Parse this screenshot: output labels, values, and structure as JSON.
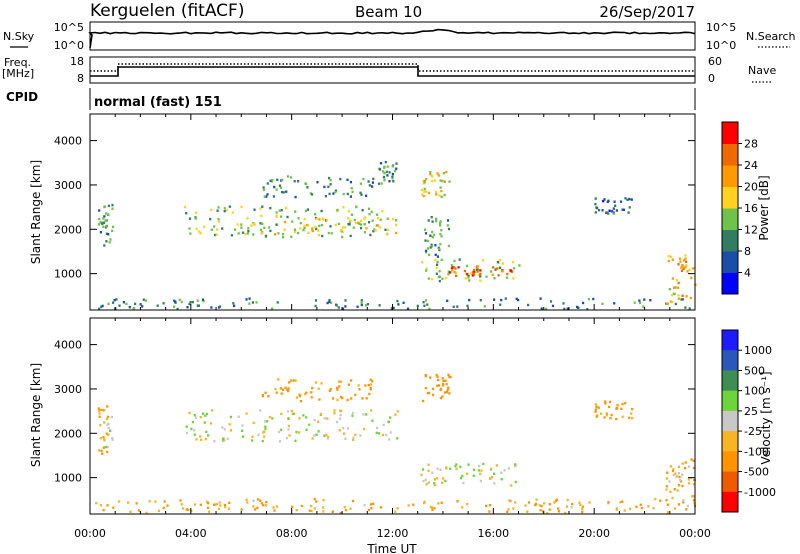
{
  "header": {
    "station": "Kerguelen (fitACF)",
    "beam": "Beam 10",
    "date": "26/Sep/2017"
  },
  "sky_panel": {
    "left_label": "N.Sky",
    "right_label": "N.Search",
    "left_ticks": [
      "10^5",
      "10^0"
    ],
    "right_ticks": [
      "10^5",
      "10^0"
    ]
  },
  "freq_panel": {
    "left_label": "Freq.",
    "left_units": "[MHz]",
    "right_label": "Nave",
    "left_ticks": [
      "18",
      "8"
    ],
    "right_ticks": [
      "60",
      "0"
    ]
  },
  "cpid_panel": {
    "label": "CPID",
    "mode": "normal (fast) 151"
  },
  "x_axis": {
    "label": "Time UT",
    "ticks": [
      "00:00",
      "04:00",
      "08:00",
      "12:00",
      "16:00",
      "20:00",
      "00:00"
    ]
  },
  "colors": {
    "power": [
      "#0000ff",
      "#1c4da8",
      "#317c62",
      "#6fc24a",
      "#ffd21f",
      "#ff9a00",
      "#f06a00",
      "#ff0000"
    ],
    "velocity": [
      "#1c1cff",
      "#2b58b8",
      "#3e8d52",
      "#6ed43b",
      "#c8c8c8",
      "#f7b526",
      "#ff9400",
      "#f05a00",
      "#ff0000"
    ]
  },
  "chart_data": [
    {
      "type": "heatmap",
      "panel": "power",
      "ylabel": "Slant Range [km]",
      "ylim": [
        180,
        4600
      ],
      "yticks": [
        "1000",
        "2000",
        "3000",
        "4000"
      ],
      "xlim_hours": [
        0,
        24
      ],
      "colorbar": {
        "label": "Power [dB]",
        "range": [
          0,
          32
        ],
        "ticks": [
          "4",
          "8",
          "12",
          "16",
          "20",
          "24",
          "28"
        ]
      },
      "echo_regions": [
        {
          "t": [
            0.3,
            0.9
          ],
          "r": [
            1500,
            2600
          ],
          "value": 10
        },
        {
          "t": [
            3.7,
            11.8
          ],
          "r": [
            1800,
            2500
          ],
          "value": 14
        },
        {
          "t": [
            6.4,
            12.2
          ],
          "r": [
            1850,
            2250
          ],
          "value": 17
        },
        {
          "t": [
            6.8,
            11.2
          ],
          "r": [
            2700,
            3200
          ],
          "value": 10
        },
        {
          "t": [
            11.4,
            12.2
          ],
          "r": [
            3000,
            3500
          ],
          "value": 11
        },
        {
          "t": [
            13.1,
            14.3
          ],
          "r": [
            2700,
            3300
          ],
          "value": 19
        },
        {
          "t": [
            13.1,
            17.0
          ],
          "r": [
            800,
            1300
          ],
          "value": 15
        },
        {
          "t": [
            14.0,
            16.8
          ],
          "r": [
            920,
            1150
          ],
          "value": 27
        },
        {
          "t": [
            13.2,
            14.2
          ],
          "r": [
            1300,
            2300
          ],
          "value": 11
        },
        {
          "t": [
            0.0,
            24.0
          ],
          "r": [
            180,
            420
          ],
          "value": 9
        },
        {
          "t": [
            22.8,
            24.0
          ],
          "r": [
            300,
            1400
          ],
          "value": 20
        },
        {
          "t": [
            20.0,
            21.5
          ],
          "r": [
            2300,
            2700
          ],
          "value": 8
        }
      ]
    },
    {
      "type": "heatmap",
      "panel": "velocity",
      "ylabel": "Slant Range [km]",
      "ylim": [
        180,
        4600
      ],
      "yticks": [
        "1000",
        "2000",
        "3000",
        "4000"
      ],
      "xlim_hours": [
        0,
        24
      ],
      "colorbar": {
        "label": "Velocity [m s⁻¹]",
        "ticks": [
          "1000",
          "500",
          "100",
          "25",
          "-25",
          "-100",
          "-500",
          "-1000"
        ]
      },
      "echo_regions": [
        {
          "t": [
            0.3,
            0.9
          ],
          "r": [
            1500,
            2600
          ],
          "value": -60
        },
        {
          "t": [
            3.7,
            12.2
          ],
          "r": [
            1800,
            2500
          ],
          "value": 0
        },
        {
          "t": [
            6.8,
            11.2
          ],
          "r": [
            2700,
            3200
          ],
          "value": -150
        },
        {
          "t": [
            13.1,
            14.3
          ],
          "r": [
            2700,
            3300
          ],
          "value": -200
        },
        {
          "t": [
            13.1,
            17.0
          ],
          "r": [
            800,
            1300
          ],
          "value": 0
        },
        {
          "t": [
            0.0,
            24.0
          ],
          "r": [
            180,
            500
          ],
          "value": -120
        },
        {
          "t": [
            20.0,
            21.5
          ],
          "r": [
            2300,
            2700
          ],
          "value": -150
        },
        {
          "t": [
            22.8,
            24.0
          ],
          "r": [
            300,
            1400
          ],
          "value": -80
        }
      ]
    }
  ]
}
